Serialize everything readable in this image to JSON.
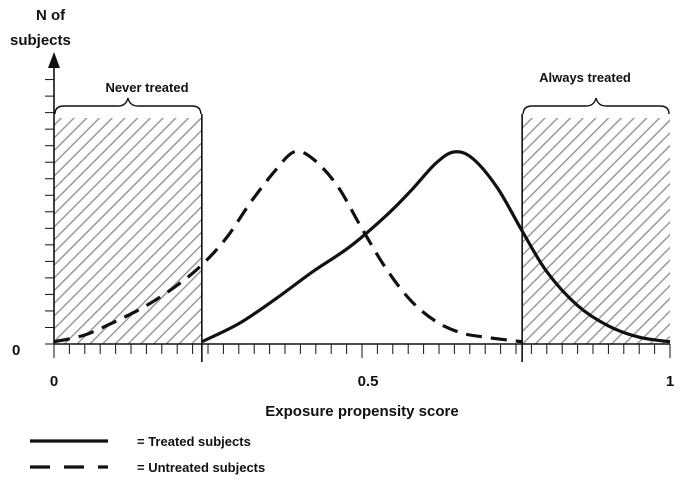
{
  "chart_data": {
    "type": "line",
    "title": "",
    "ylabel_lines": [
      "N of",
      "subjects"
    ],
    "xlabel": "Exposure propensity score",
    "xlim": [
      0,
      1
    ],
    "ylim": [
      0,
      1
    ],
    "x_ticks": [
      {
        "value": 0,
        "label": "0"
      },
      {
        "value": 0.5,
        "label": "0.5"
      },
      {
        "value": 1,
        "label": "1"
      }
    ],
    "y_ticks": [
      {
        "value": 0,
        "label": "0"
      }
    ],
    "series": [
      {
        "name": "Treated subjects",
        "style": "solid",
        "x": [
          0.24,
          0.3,
          0.36,
          0.42,
          0.48,
          0.54,
          0.58,
          0.62,
          0.65,
          0.68,
          0.72,
          0.76,
          0.8,
          0.85,
          0.9,
          0.95,
          1.0
        ],
        "y": [
          0.01,
          0.09,
          0.2,
          0.32,
          0.43,
          0.57,
          0.68,
          0.8,
          0.85,
          0.82,
          0.69,
          0.5,
          0.32,
          0.17,
          0.08,
          0.03,
          0.01
        ]
      },
      {
        "name": "Untreated subjects",
        "style": "dashed",
        "x": [
          0.0,
          0.05,
          0.1,
          0.15,
          0.2,
          0.24,
          0.28,
          0.32,
          0.36,
          0.39,
          0.42,
          0.46,
          0.5,
          0.54,
          0.58,
          0.62,
          0.66,
          0.7,
          0.76
        ],
        "y": [
          0.01,
          0.04,
          0.1,
          0.17,
          0.26,
          0.35,
          0.47,
          0.63,
          0.77,
          0.85,
          0.82,
          0.7,
          0.51,
          0.33,
          0.19,
          0.1,
          0.05,
          0.03,
          0.01
        ]
      }
    ],
    "regions": [
      {
        "name": "Never treated",
        "x_start": 0,
        "x_end": 0.24,
        "height": 1.0
      },
      {
        "name": "Always treated",
        "x_start": 0.76,
        "x_end": 1,
        "height": 1.0
      }
    ],
    "legend": [
      {
        "style": "solid",
        "label": "= Treated subjects"
      },
      {
        "style": "dashed",
        "label": "= Untreated subjects"
      }
    ],
    "grid": false,
    "hatch_color": "#9a9a9a",
    "line_color": "#111111"
  }
}
